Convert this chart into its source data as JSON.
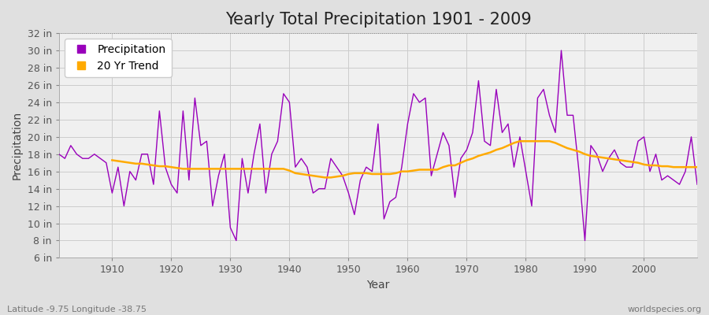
{
  "title": "Yearly Total Precipitation 1901 - 2009",
  "xlabel": "Year",
  "ylabel": "Precipitation",
  "footnote_left": "Latitude -9.75 Longitude -38.75",
  "footnote_right": "worldspecies.org",
  "ylim": [
    6,
    32
  ],
  "yticks": [
    6,
    8,
    10,
    12,
    14,
    16,
    18,
    20,
    22,
    24,
    26,
    28,
    30,
    32
  ],
  "years": [
    1901,
    1902,
    1903,
    1904,
    1905,
    1906,
    1907,
    1908,
    1909,
    1910,
    1911,
    1912,
    1913,
    1914,
    1915,
    1916,
    1917,
    1918,
    1919,
    1920,
    1921,
    1922,
    1923,
    1924,
    1925,
    1926,
    1927,
    1928,
    1929,
    1930,
    1931,
    1932,
    1933,
    1934,
    1935,
    1936,
    1937,
    1938,
    1939,
    1940,
    1941,
    1942,
    1943,
    1944,
    1945,
    1946,
    1947,
    1948,
    1949,
    1950,
    1951,
    1952,
    1953,
    1954,
    1955,
    1956,
    1957,
    1958,
    1959,
    1960,
    1961,
    1962,
    1963,
    1964,
    1965,
    1966,
    1967,
    1968,
    1969,
    1970,
    1971,
    1972,
    1973,
    1974,
    1975,
    1976,
    1977,
    1978,
    1979,
    1980,
    1981,
    1982,
    1983,
    1984,
    1985,
    1986,
    1987,
    1988,
    1989,
    1990,
    1991,
    1992,
    1993,
    1994,
    1995,
    1996,
    1997,
    1998,
    1999,
    2000,
    2001,
    2002,
    2003,
    2004,
    2005,
    2006,
    2007,
    2008,
    2009
  ],
  "precip": [
    18.0,
    17.5,
    19.0,
    18.0,
    17.5,
    17.5,
    18.0,
    17.5,
    17.0,
    13.5,
    16.5,
    12.0,
    16.0,
    15.0,
    18.0,
    18.0,
    14.5,
    23.0,
    16.5,
    14.5,
    13.5,
    23.0,
    15.0,
    24.5,
    19.0,
    19.5,
    12.0,
    15.5,
    18.0,
    9.5,
    8.0,
    17.5,
    13.5,
    18.0,
    21.5,
    13.5,
    18.0,
    19.5,
    25.0,
    24.0,
    16.5,
    17.5,
    16.5,
    13.5,
    14.0,
    14.0,
    17.5,
    16.5,
    15.5,
    13.5,
    11.0,
    15.0,
    16.5,
    16.0,
    21.5,
    10.5,
    12.5,
    13.0,
    16.5,
    21.5,
    25.0,
    24.0,
    24.5,
    15.5,
    18.0,
    20.5,
    19.0,
    13.0,
    17.5,
    18.5,
    20.5,
    26.5,
    19.5,
    19.0,
    25.5,
    20.5,
    21.5,
    16.5,
    20.0,
    16.0,
    12.0,
    24.5,
    25.5,
    22.5,
    20.5,
    30.0,
    22.5,
    22.5,
    16.0,
    8.0,
    19.0,
    18.0,
    16.0,
    17.5,
    18.5,
    17.0,
    16.5,
    16.5,
    19.5,
    20.0,
    16.0,
    18.0,
    15.0,
    15.5,
    15.0,
    14.5,
    16.0,
    20.0,
    14.5
  ],
  "trend_years": [
    1910,
    1911,
    1912,
    1913,
    1914,
    1915,
    1916,
    1917,
    1918,
    1919,
    1920,
    1921,
    1922,
    1923,
    1924,
    1925,
    1926,
    1927,
    1928,
    1929,
    1930,
    1931,
    1932,
    1933,
    1934,
    1935,
    1936,
    1937,
    1938,
    1939,
    1940,
    1941,
    1942,
    1943,
    1944,
    1945,
    1946,
    1947,
    1948,
    1949,
    1950,
    1951,
    1952,
    1953,
    1954,
    1955,
    1956,
    1957,
    1958,
    1959,
    1960,
    1961,
    1962,
    1963,
    1964,
    1965,
    1966,
    1967,
    1968,
    1969,
    1970,
    1971,
    1972,
    1973,
    1974,
    1975,
    1976,
    1977,
    1978,
    1979,
    1980,
    1981,
    1982,
    1983,
    1984,
    1985,
    1986,
    1987,
    1988,
    1989,
    1990,
    1991,
    1992,
    1993,
    1994,
    1995,
    1996,
    1997,
    1998,
    1999,
    2000,
    2001,
    2002,
    2003,
    2004,
    2005,
    2006,
    2007,
    2008,
    2009
  ],
  "trend": [
    17.3,
    17.2,
    17.1,
    17.0,
    16.9,
    16.9,
    16.8,
    16.7,
    16.6,
    16.6,
    16.5,
    16.4,
    16.3,
    16.3,
    16.3,
    16.3,
    16.3,
    16.3,
    16.3,
    16.3,
    16.3,
    16.3,
    16.3,
    16.3,
    16.3,
    16.3,
    16.3,
    16.3,
    16.3,
    16.3,
    16.1,
    15.8,
    15.7,
    15.6,
    15.5,
    15.4,
    15.3,
    15.3,
    15.4,
    15.5,
    15.7,
    15.8,
    15.8,
    15.8,
    15.7,
    15.7,
    15.7,
    15.7,
    15.8,
    16.0,
    16.0,
    16.1,
    16.2,
    16.2,
    16.2,
    16.2,
    16.5,
    16.7,
    16.7,
    17.0,
    17.3,
    17.5,
    17.8,
    18.0,
    18.2,
    18.5,
    18.7,
    19.0,
    19.3,
    19.5,
    19.5,
    19.5,
    19.5,
    19.5,
    19.5,
    19.3,
    19.0,
    18.7,
    18.5,
    18.3,
    18.0,
    17.8,
    17.7,
    17.6,
    17.5,
    17.4,
    17.3,
    17.2,
    17.1,
    17.0,
    16.8,
    16.7,
    16.7,
    16.6,
    16.6,
    16.5,
    16.5,
    16.5,
    16.5,
    16.5
  ],
  "precip_color": "#9900bb",
  "trend_color": "#ffaa00",
  "fig_bg_color": "#e0e0e0",
  "plot_bg_color": "#f0f0f0",
  "grid_color": "#cccccc",
  "title_fontsize": 15,
  "label_fontsize": 10,
  "tick_fontsize": 9,
  "xtick_positions": [
    1910,
    1920,
    1930,
    1940,
    1950,
    1960,
    1970,
    1980,
    1990,
    2000
  ]
}
